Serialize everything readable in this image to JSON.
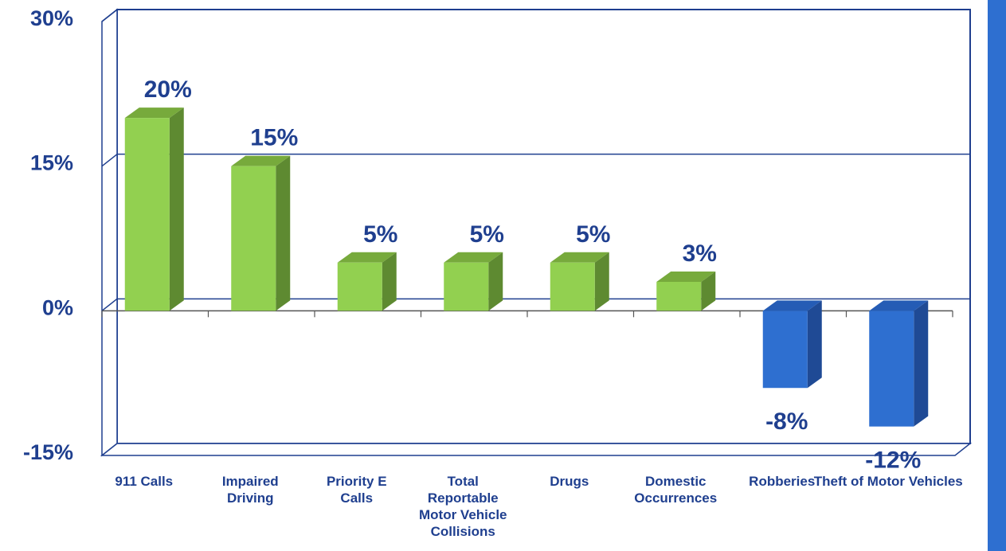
{
  "chart_data": {
    "type": "bar",
    "categories": [
      "911 Calls",
      "Impaired Driving",
      "Priority E Calls",
      "Total Reportable Motor Vehicle Collisions",
      "Drugs",
      "Domestic Occurrences",
      "Robberies",
      "Theft of Motor Vehicles"
    ],
    "category_lines": [
      [
        "911 Calls"
      ],
      [
        "Impaired",
        "Driving"
      ],
      [
        "Priority E",
        "Calls"
      ],
      [
        "Total",
        "Reportable",
        "Motor Vehicle",
        "Collisions"
      ],
      [
        "Drugs"
      ],
      [
        "Domestic",
        "Occurrences"
      ],
      [
        "Robberies"
      ],
      [
        "Theft of Motor Vehicles"
      ]
    ],
    "values": [
      20,
      15,
      5,
      5,
      5,
      3,
      -8,
      -12
    ],
    "data_labels": [
      "20%",
      "15%",
      "5%",
      "5%",
      "5%",
      "3%",
      "-8%",
      "-12%"
    ],
    "ylim": [
      -15,
      30
    ],
    "yticks": [
      30,
      15,
      0,
      -15
    ],
    "ytick_labels": [
      "30%",
      "15%",
      "0%",
      "-15%"
    ],
    "grid": true,
    "legend": "none",
    "title": "",
    "xlabel": "",
    "ylabel": ""
  },
  "colors": {
    "positive_front": "#92d050",
    "positive_side": "#5e8a31",
    "positive_top": "#77aa3c",
    "negative_front": "#2e6fd0",
    "negative_side": "#1f4a95",
    "negative_top": "#255cb5",
    "axis_text": "#1f3f8f",
    "frame": "#1f3f8f",
    "side_strip": "#2e6fd0"
  }
}
